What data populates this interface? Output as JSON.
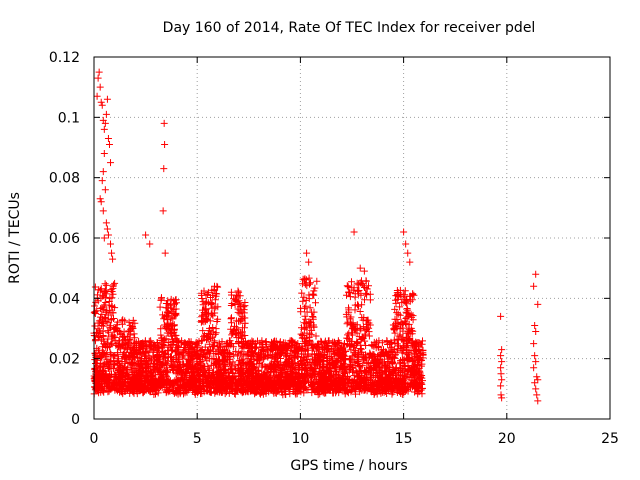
{
  "chart_data": {
    "type": "scatter",
    "title": "Day 160 of 2014, Rate Of TEC Index for receiver pdel",
    "xlabel": "GPS time / hours",
    "ylabel": "ROTI / TECUs",
    "xlim": [
      0,
      25
    ],
    "ylim": [
      0,
      0.12
    ],
    "xticks": [
      0,
      5,
      10,
      15,
      20,
      25
    ],
    "xtick_labels": [
      "0",
      "5",
      "10",
      "15",
      "20",
      "25"
    ],
    "yticks": [
      0,
      0.02,
      0.04,
      0.06,
      0.08,
      0.1,
      0.12
    ],
    "ytick_labels": [
      "0",
      "0.02",
      "0.04",
      "0.06",
      "0.08",
      "0.1",
      "0.12"
    ],
    "grid": true,
    "marker": "+",
    "color": "#ff0000",
    "series": [
      {
        "name": "ROTI",
        "points": [
          [
            0.2,
            0.113
          ],
          [
            0.25,
            0.115
          ],
          [
            0.3,
            0.11
          ],
          [
            0.35,
            0.105
          ],
          [
            0.15,
            0.107
          ],
          [
            0.4,
            0.104
          ],
          [
            0.45,
            0.099
          ],
          [
            0.5,
            0.096
          ],
          [
            0.55,
            0.098
          ],
          [
            0.6,
            0.101
          ],
          [
            0.65,
            0.106
          ],
          [
            0.7,
            0.093
          ],
          [
            0.75,
            0.091
          ],
          [
            0.8,
            0.085
          ],
          [
            0.5,
            0.088
          ],
          [
            0.45,
            0.082
          ],
          [
            0.4,
            0.079
          ],
          [
            0.55,
            0.076
          ],
          [
            0.3,
            0.073
          ],
          [
            0.35,
            0.072
          ],
          [
            0.45,
            0.069
          ],
          [
            0.6,
            0.065
          ],
          [
            0.65,
            0.063
          ],
          [
            0.7,
            0.061
          ],
          [
            0.8,
            0.058
          ],
          [
            0.85,
            0.055
          ],
          [
            0.9,
            0.053
          ],
          [
            0.5,
            0.06
          ],
          [
            2.5,
            0.061
          ],
          [
            2.7,
            0.058
          ],
          [
            3.4,
            0.098
          ],
          [
            3.42,
            0.091
          ],
          [
            3.38,
            0.083
          ],
          [
            3.35,
            0.069
          ],
          [
            3.45,
            0.055
          ],
          [
            10.3,
            0.055
          ],
          [
            10.4,
            0.052
          ],
          [
            12.6,
            0.062
          ],
          [
            12.9,
            0.05
          ],
          [
            13.1,
            0.049
          ],
          [
            15.0,
            0.062
          ],
          [
            15.1,
            0.058
          ],
          [
            15.2,
            0.055
          ],
          [
            15.3,
            0.052
          ],
          [
            19.7,
            0.034
          ],
          [
            19.75,
            0.023
          ],
          [
            19.7,
            0.021
          ],
          [
            19.75,
            0.019
          ],
          [
            19.7,
            0.017
          ],
          [
            19.72,
            0.015
          ],
          [
            19.75,
            0.013
          ],
          [
            19.7,
            0.011
          ],
          [
            19.72,
            0.008
          ],
          [
            19.75,
            0.007
          ],
          [
            21.3,
            0.044
          ],
          [
            21.4,
            0.048
          ],
          [
            21.5,
            0.038
          ],
          [
            21.35,
            0.031
          ],
          [
            21.4,
            0.029
          ],
          [
            21.3,
            0.025
          ],
          [
            21.35,
            0.021
          ],
          [
            21.4,
            0.019
          ],
          [
            21.3,
            0.017
          ],
          [
            21.45,
            0.014
          ],
          [
            21.5,
            0.013
          ],
          [
            21.35,
            0.012
          ],
          [
            21.4,
            0.01
          ],
          [
            21.45,
            0.008
          ],
          [
            21.5,
            0.006
          ]
        ]
      }
    ]
  }
}
